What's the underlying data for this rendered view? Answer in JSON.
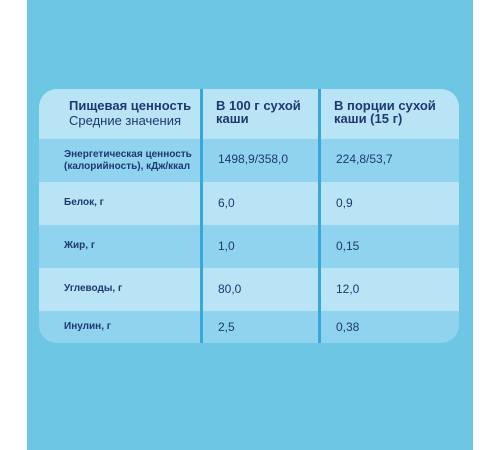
{
  "header": {
    "col0_title": "Пищевая ценность",
    "col0_subtitle": "Средние значения",
    "col1": "В 100 г сухой каши",
    "col2": "В порции сухой каши (15 г)"
  },
  "rows": [
    {
      "label": "Энергетическая ценность (калорийность), кДж/ккал",
      "per100": "1498,9/358,0",
      "portion": "224,8/53,7"
    },
    {
      "label": "Белок, г",
      "per100": "6,0",
      "portion": "0,9"
    },
    {
      "label": "Жир, г",
      "per100": "1,0",
      "portion": "0,15"
    },
    {
      "label": "Углеводы, г",
      "per100": "80,0",
      "portion": "12,0"
    },
    {
      "label": "Инулин, г",
      "per100": "2,5",
      "portion": "0,38"
    }
  ],
  "colors": {
    "panel": "#6dc7e4",
    "row_light": "#b9e4f5",
    "row_dark": "#8fd3ee",
    "divider": "#3aa7d9",
    "text": "#1f3870"
  }
}
